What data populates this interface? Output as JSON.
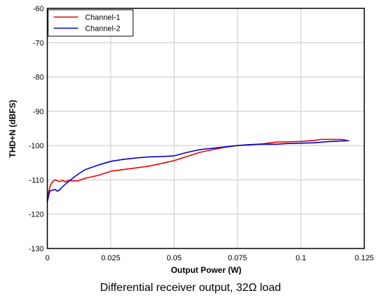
{
  "chart_data": {
    "type": "line",
    "title": "",
    "xlabel": "Output Power (W)",
    "ylabel": "THD+N (dBFS)",
    "xlim": [
      0,
      0.125
    ],
    "ylim": [
      -130,
      -60
    ],
    "x_ticks": [
      "0",
      "0.025",
      "0.05",
      "0.075",
      "0.1",
      "0.125"
    ],
    "y_ticks": [
      "-60",
      "-70",
      "-80",
      "-90",
      "-100",
      "-110",
      "-120",
      "-130"
    ],
    "grid": true,
    "legend_position": "top-left",
    "series": [
      {
        "name": "Channel-1",
        "color": "#ee0000",
        "points": [
          [
            0.0,
            -115.5
          ],
          [
            0.0005,
            -113.5
          ],
          [
            0.0012,
            -111.5
          ],
          [
            0.002,
            -110.6
          ],
          [
            0.003,
            -110.0
          ],
          [
            0.004,
            -110.3
          ],
          [
            0.005,
            -110.5
          ],
          [
            0.006,
            -110.1
          ],
          [
            0.007,
            -110.6
          ],
          [
            0.008,
            -110.2
          ],
          [
            0.01,
            -110.3
          ],
          [
            0.012,
            -110.3
          ],
          [
            0.015,
            -109.5
          ],
          [
            0.02,
            -108.7
          ],
          [
            0.025,
            -107.5
          ],
          [
            0.03,
            -107.0
          ],
          [
            0.035,
            -106.5
          ],
          [
            0.04,
            -106.0
          ],
          [
            0.045,
            -105.2
          ],
          [
            0.05,
            -104.4
          ],
          [
            0.055,
            -103.2
          ],
          [
            0.06,
            -102.0
          ],
          [
            0.065,
            -101.2
          ],
          [
            0.07,
            -100.5
          ],
          [
            0.075,
            -100.0
          ],
          [
            0.08,
            -99.8
          ],
          [
            0.085,
            -99.5
          ],
          [
            0.09,
            -99.0
          ],
          [
            0.095,
            -98.9
          ],
          [
            0.1,
            -98.8
          ],
          [
            0.105,
            -98.5
          ],
          [
            0.108,
            -98.2
          ],
          [
            0.112,
            -98.2
          ],
          [
            0.116,
            -98.2
          ],
          [
            0.118,
            -98.4
          ]
        ]
      },
      {
        "name": "Channel-2",
        "color": "#0000cc",
        "points": [
          [
            0.0,
            -116.5
          ],
          [
            0.0005,
            -114.5
          ],
          [
            0.001,
            -113.2
          ],
          [
            0.002,
            -113.0
          ],
          [
            0.003,
            -112.8
          ],
          [
            0.004,
            -113.3
          ],
          [
            0.005,
            -112.8
          ],
          [
            0.006,
            -112.0
          ],
          [
            0.007,
            -111.3
          ],
          [
            0.008,
            -110.7
          ],
          [
            0.01,
            -109.5
          ],
          [
            0.012,
            -108.4
          ],
          [
            0.015,
            -107.0
          ],
          [
            0.02,
            -105.7
          ],
          [
            0.025,
            -104.6
          ],
          [
            0.03,
            -104.0
          ],
          [
            0.035,
            -103.6
          ],
          [
            0.04,
            -103.3
          ],
          [
            0.045,
            -103.2
          ],
          [
            0.05,
            -103.0
          ],
          [
            0.055,
            -102.0
          ],
          [
            0.06,
            -101.2
          ],
          [
            0.065,
            -100.8
          ],
          [
            0.07,
            -100.4
          ],
          [
            0.075,
            -100.0
          ],
          [
            0.08,
            -99.7
          ],
          [
            0.085,
            -99.6
          ],
          [
            0.09,
            -99.6
          ],
          [
            0.095,
            -99.4
          ],
          [
            0.1,
            -99.3
          ],
          [
            0.105,
            -99.2
          ],
          [
            0.11,
            -98.9
          ],
          [
            0.115,
            -98.7
          ],
          [
            0.119,
            -98.6
          ]
        ]
      }
    ]
  },
  "caption": "Differential receiver output, 32Ω load"
}
